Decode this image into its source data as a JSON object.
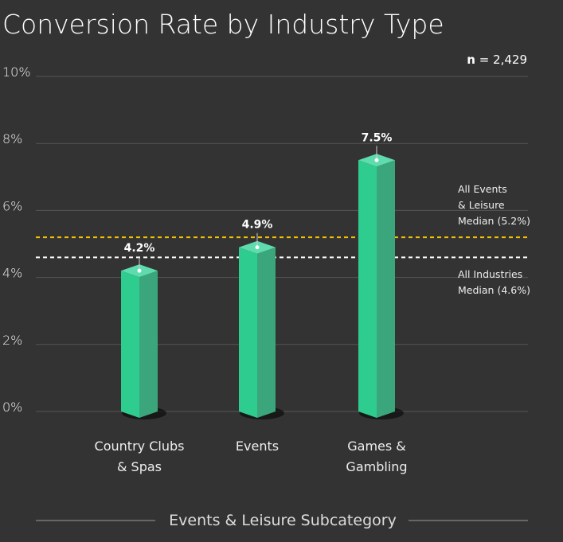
{
  "chart_data": {
    "type": "bar",
    "title": "Conversion Rate by Industry Type",
    "note_label": "n",
    "note_value": "= 2,429",
    "x_label": "Events & Leisure Subcategory",
    "categories": [
      "Country Clubs\n& Spas",
      "Events",
      "Games &\nGambling"
    ],
    "values": [
      4.2,
      4.9,
      7.5
    ],
    "value_labels": [
      "4.2%",
      "4.9%",
      "7.5%"
    ],
    "color": "#2ecc8f",
    "ylim": [
      0,
      10
    ],
    "yticks": [
      {
        "value": 0,
        "label": "0%"
      },
      {
        "value": 2,
        "label": "2%"
      },
      {
        "value": 4,
        "label": "4%"
      },
      {
        "value": 6,
        "label": "6%"
      },
      {
        "value": 8,
        "label": "8%"
      },
      {
        "value": 10,
        "label": "10%"
      }
    ],
    "grid": true,
    "reference_lines": [
      {
        "label": "All Events\n& Leisure\nMedian (5.2%)",
        "value": 5.2,
        "color": "#f2c200"
      },
      {
        "label": "All Industries\nMedian (4.6%)",
        "value": 4.6,
        "color": "#ffffff"
      }
    ]
  }
}
